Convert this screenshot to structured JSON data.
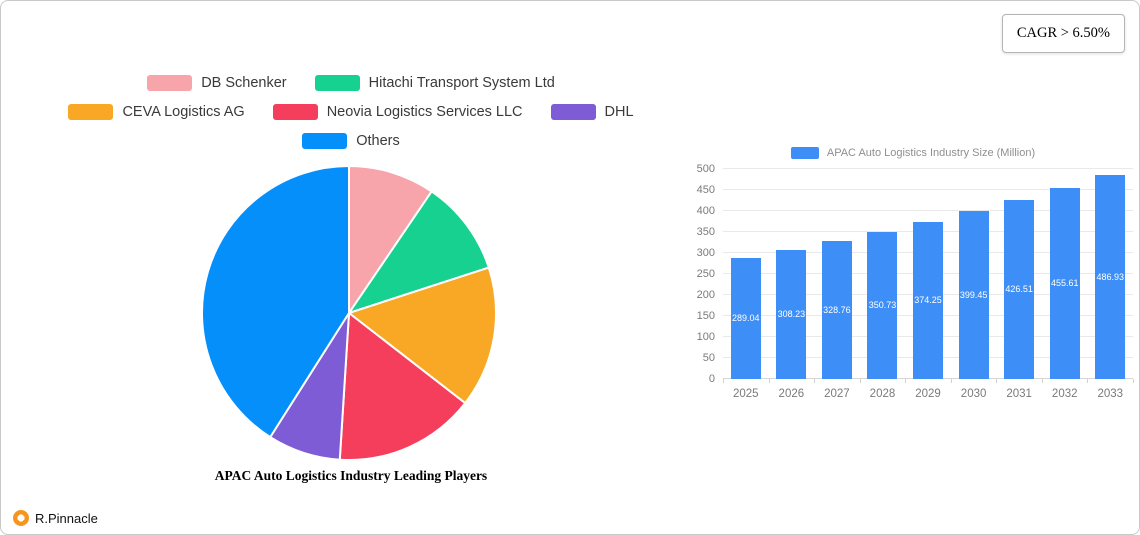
{
  "cagr_badge": "CAGR > 6.50%",
  "footer": {
    "brand": "R.Pinnacle"
  },
  "chart_data": [
    {
      "type": "pie",
      "title": "APAC Auto Logistics Industry Leading Players",
      "labels": [
        "DB Schenker",
        "Hitachi Transport System Ltd",
        "CEVA Logistics AG",
        "Neovia Logistics Services LLC",
        "DHL",
        "Others"
      ],
      "values": [
        9.5,
        10.5,
        15.5,
        15.5,
        8,
        41
      ],
      "colors": [
        "#F7A4AB",
        "#17D191",
        "#F9A825",
        "#F53E5C",
        "#7D5CD5",
        "#058FFB"
      ],
      "legend_rows": [
        [
          0,
          1
        ],
        [
          2,
          3,
          4
        ],
        [
          5
        ]
      ],
      "legend_position": "top"
    },
    {
      "type": "bar",
      "legend_label": "APAC Auto Logistics Industry Size (Million)",
      "categories": [
        "2025",
        "2026",
        "2027",
        "2028",
        "2029",
        "2030",
        "2031",
        "2032",
        "2033"
      ],
      "values": [
        289.04,
        308.23,
        328.76,
        350.73,
        374.25,
        399.45,
        426.51,
        455.61,
        486.93
      ],
      "ylim": [
        0,
        500
      ],
      "ytick_step": 50,
      "grid": true,
      "bar_color": "#3E8EF7",
      "legend_position": "top"
    }
  ]
}
